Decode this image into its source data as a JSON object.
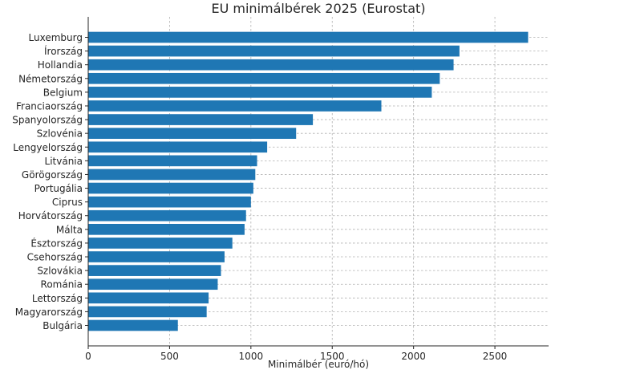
{
  "chart_data": {
    "type": "bar",
    "orientation": "horizontal",
    "title": "EU minimálbérek 2025 (Eurostat)",
    "xlabel": "Minimálbér (euró/hó)",
    "ylabel": "",
    "xlim": [
      0,
      2830
    ],
    "xticks": [
      0,
      500,
      1000,
      1500,
      2000,
      2500
    ],
    "grid": true,
    "bar_color": "#1f77b4",
    "categories": [
      "Luxemburg",
      "Írország",
      "Hollandia",
      "Németország",
      "Belgium",
      "Franciaország",
      "Spanyolország",
      "Szlovénia",
      "Lengyelország",
      "Litvánia",
      "Görögország",
      "Portugália",
      "Ciprus",
      "Horvátország",
      "Málta",
      "Észtország",
      "Csehország",
      "Szlovákia",
      "Románia",
      "Lettország",
      "Magyarország",
      "Bulgária"
    ],
    "values": [
      2704,
      2282,
      2246,
      2161,
      2112,
      1802,
      1381,
      1278,
      1100,
      1038,
      1027,
      1015,
      1000,
      970,
      961,
      886,
      838,
      816,
      796,
      740,
      728,
      551
    ]
  }
}
